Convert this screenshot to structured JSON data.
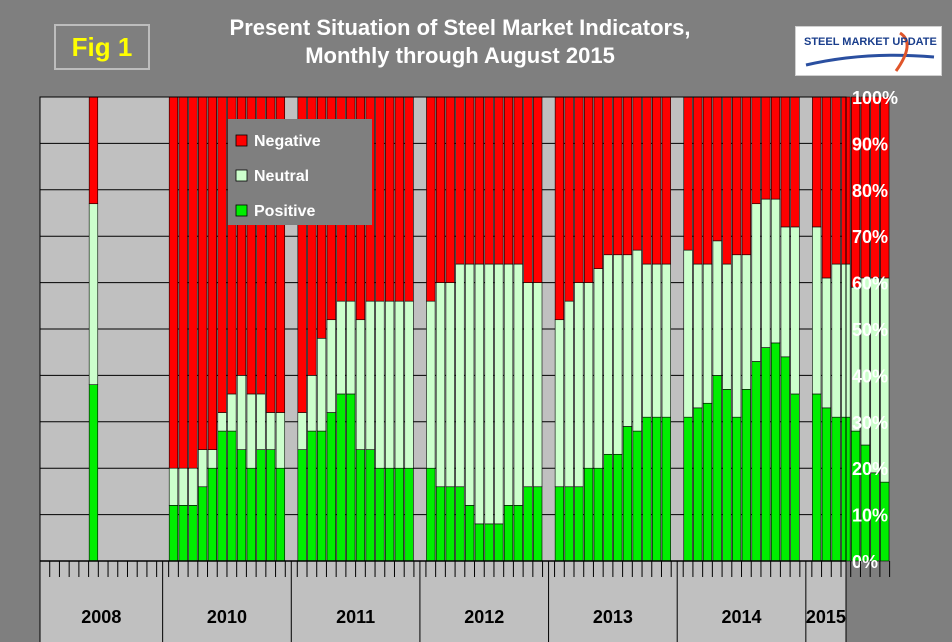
{
  "header": {
    "fig_label": "Fig 1",
    "title_line1": "Present Situation of Steel Market Indicators,",
    "title_line2": "Monthly through August 2015",
    "logo_text": "STEEL MARKET UPDATE"
  },
  "colors": {
    "negative": "#ff0000",
    "neutral": "#ccffcc",
    "positive": "#00ee00",
    "plot_bg": "#c0c0c0",
    "page_bg": "#7f7f7f"
  },
  "chart_data": {
    "type": "bar",
    "stacked": true,
    "title": "Present Situation of Steel Market Indicators, Monthly through August 2015",
    "y_axis": {
      "min": 0,
      "max": 100,
      "unit": "%",
      "position": "right",
      "ticks": [
        "0%",
        "10%",
        "20%",
        "30%",
        "40%",
        "50%",
        "60%",
        "70%",
        "80%",
        "90%",
        "100%"
      ]
    },
    "legend": [
      {
        "name": "Negative",
        "color": "#ff0000"
      },
      {
        "name": "Neutral",
        "color": "#ccffcc"
      },
      {
        "name": "Positive",
        "color": "#00ee00"
      }
    ],
    "year_labels": [
      "2008",
      "2010",
      "2011",
      "2012",
      "2013",
      "2014",
      "2015"
    ],
    "groups": [
      {
        "year": "2008",
        "months": 12,
        "data_start_index": 5,
        "positive": [
          38
        ],
        "neutral": [
          39
        ]
      },
      {
        "year": "2010",
        "months": 12,
        "data_start_index": 0,
        "positive": [
          12,
          12,
          12,
          16,
          20,
          28,
          28,
          24,
          20,
          24,
          24,
          20
        ],
        "neutral": [
          8,
          8,
          8,
          8,
          4,
          4,
          8,
          16,
          16,
          12,
          8,
          12
        ]
      },
      {
        "year": "2011",
        "months": 12,
        "data_start_index": 0,
        "positive": [
          24,
          28,
          28,
          32,
          36,
          36,
          24,
          24,
          20,
          20,
          20,
          20
        ],
        "neutral": [
          8,
          12,
          20,
          20,
          20,
          20,
          28,
          32,
          36,
          36,
          36,
          36
        ]
      },
      {
        "year": "2012",
        "months": 12,
        "data_start_index": 0,
        "positive": [
          20,
          16,
          16,
          16,
          12,
          8,
          8,
          8,
          12,
          12,
          16,
          16
        ],
        "neutral": [
          36,
          44,
          44,
          48,
          52,
          56,
          56,
          56,
          52,
          52,
          44,
          44
        ]
      },
      {
        "year": "2013",
        "months": 12,
        "data_start_index": 0,
        "positive": [
          16,
          16,
          16,
          20,
          20,
          23,
          23,
          29,
          28,
          31,
          31,
          31
        ],
        "neutral": [
          36,
          40,
          44,
          40,
          43,
          43,
          43,
          37,
          39,
          33,
          33,
          33
        ]
      },
      {
        "year": "2014",
        "months": 12,
        "data_start_index": 0,
        "positive": [
          31,
          33,
          34,
          40,
          37,
          31,
          37,
          43,
          46,
          47,
          44,
          36
        ],
        "neutral": [
          36,
          31,
          30,
          29,
          27,
          35,
          29,
          34,
          32,
          31,
          28,
          36
        ]
      },
      {
        "year": "2015",
        "months": 8,
        "data_start_index": 0,
        "positive": [
          36,
          33,
          31,
          31,
          28,
          25,
          19,
          17
        ],
        "neutral": [
          36,
          28,
          33,
          33,
          31,
          36,
          42,
          44
        ]
      }
    ]
  }
}
